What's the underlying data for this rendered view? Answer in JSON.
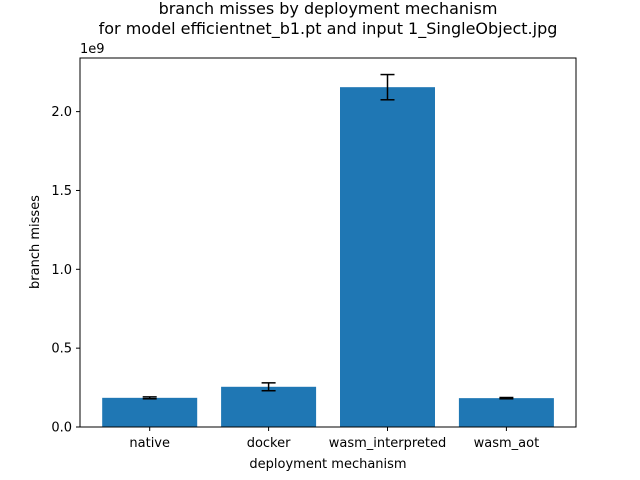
{
  "chart_data": {
    "type": "bar",
    "title_line1": "branch misses by deployment mechanism",
    "title_line2": "for model efficientnet_b1.pt and input 1_SingleObject.jpg",
    "xlabel": "deployment mechanism",
    "ylabel": "branch misses",
    "y_offset_label": "1e9",
    "categories": [
      "native",
      "docker",
      "wasm_interpreted",
      "wasm_aot"
    ],
    "values": [
      0.185,
      0.255,
      2.155,
      0.183
    ],
    "errors": [
      0.006,
      0.025,
      0.08,
      0.004
    ],
    "ylim": [
      0,
      2.34
    ],
    "yticks": [
      0.0,
      0.5,
      1.0,
      1.5,
      2.0
    ],
    "ytick_labels": [
      "0.0",
      "0.5",
      "1.0",
      "1.5",
      "2.0"
    ],
    "grid": false,
    "bar_color": "#1f77b4",
    "error_color": "#000000"
  }
}
